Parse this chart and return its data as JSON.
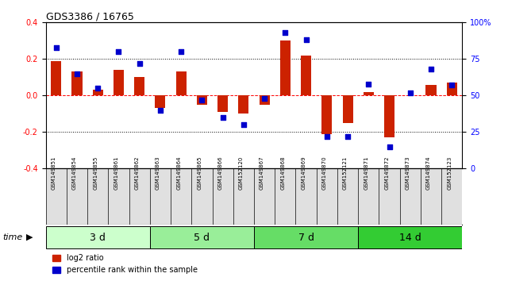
{
  "title": "GDS3386 / 16765",
  "samples": [
    "GSM149851",
    "GSM149854",
    "GSM149855",
    "GSM149861",
    "GSM149862",
    "GSM149863",
    "GSM149864",
    "GSM149865",
    "GSM149866",
    "GSM152120",
    "GSM149867",
    "GSM149868",
    "GSM149869",
    "GSM149870",
    "GSM152121",
    "GSM149871",
    "GSM149872",
    "GSM149873",
    "GSM149874",
    "GSM152123"
  ],
  "log2_ratio": [
    0.19,
    0.13,
    0.03,
    0.14,
    0.1,
    -0.07,
    0.13,
    -0.05,
    -0.09,
    -0.1,
    -0.05,
    0.3,
    0.22,
    -0.21,
    -0.15,
    0.02,
    -0.23,
    0.0,
    0.06,
    0.07
  ],
  "percentile": [
    83,
    65,
    55,
    80,
    72,
    40,
    80,
    47,
    35,
    30,
    48,
    93,
    88,
    22,
    22,
    58,
    15,
    52,
    68,
    57
  ],
  "groups": [
    {
      "label": "3 d",
      "start": 0,
      "end": 5,
      "color": "#ccffcc"
    },
    {
      "label": "5 d",
      "start": 5,
      "end": 10,
      "color": "#99ee99"
    },
    {
      "label": "7 d",
      "start": 10,
      "end": 15,
      "color": "#66dd66"
    },
    {
      "label": "14 d",
      "start": 15,
      "end": 20,
      "color": "#33cc33"
    }
  ],
  "ylim": [
    -0.4,
    0.4
  ],
  "yticks_left": [
    -0.4,
    -0.2,
    0.0,
    0.2,
    0.4
  ],
  "yticks_right": [
    0,
    25,
    50,
    75,
    100
  ],
  "hlines": [
    0.2,
    0.0,
    -0.2
  ],
  "bar_color": "#cc2200",
  "dot_color": "#0000cc",
  "time_label": "time",
  "legend": [
    "log2 ratio",
    "percentile rank within the sample"
  ]
}
